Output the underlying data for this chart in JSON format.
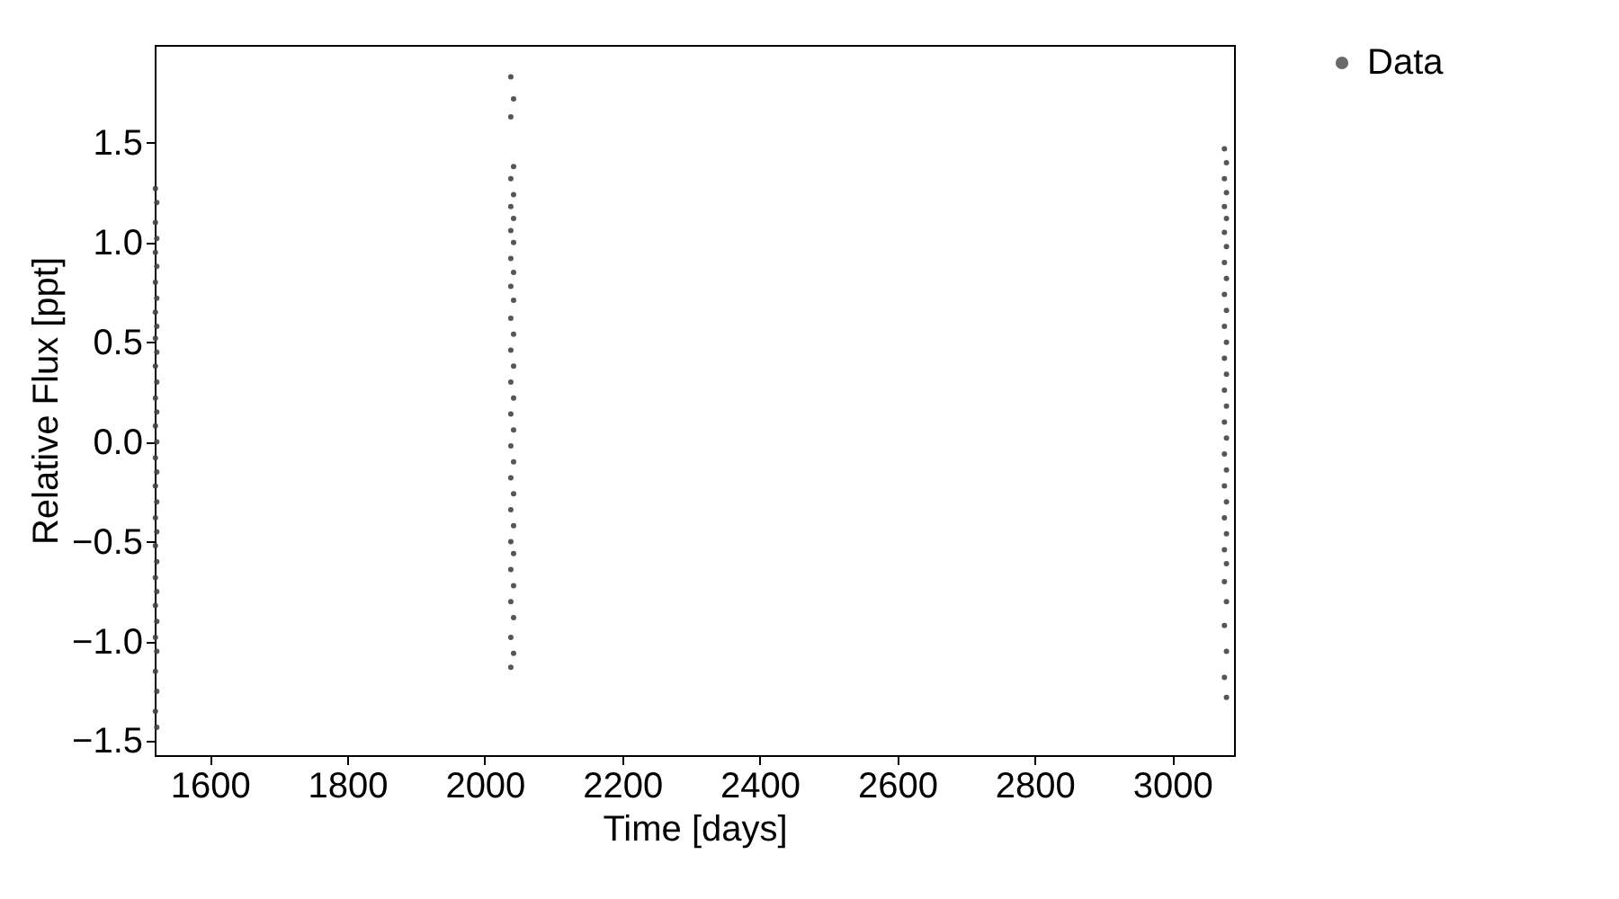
{
  "chart_data": {
    "type": "scatter",
    "xlabel": "Time [days]",
    "ylabel": "Relative Flux [ppt]",
    "xlim": [
      1520,
      3090
    ],
    "xticks": [
      1600,
      1800,
      2000,
      2200,
      2400,
      2600,
      2800,
      3000
    ],
    "ylim": [
      -1.57,
      1.99
    ],
    "yticks": [
      {
        "value": -1.5,
        "label": "−1.5"
      },
      {
        "value": -1.0,
        "label": "−1.0"
      },
      {
        "value": -0.5,
        "label": "−0.5"
      },
      {
        "value": 0.0,
        "label": "0.0"
      },
      {
        "value": 0.5,
        "label": "0.5"
      },
      {
        "value": 1.0,
        "label": "1.0"
      },
      {
        "value": 1.5,
        "label": "1.5"
      }
    ],
    "grid": false,
    "legend": "top right",
    "marker": "circle",
    "series": [
      {
        "name": "Data",
        "color": "#444444",
        "x": [
          1521,
          1523,
          1521,
          1523,
          1521,
          1523,
          1521,
          1523,
          1521,
          1523,
          1521,
          1523,
          1521,
          1523,
          1521,
          1523,
          1521,
          1523,
          1521,
          1523,
          1521,
          1523,
          1521,
          1523,
          1521,
          1523,
          1521,
          1523,
          1521,
          1523,
          1521,
          1523,
          1521,
          1523,
          1521,
          1523,
          2038,
          2042,
          2038,
          2042,
          2038,
          2042,
          2038,
          2042,
          2038,
          2042,
          2038,
          2042,
          2038,
          2042,
          2038,
          2042,
          2038,
          2042,
          2038,
          2042,
          2038,
          2042,
          2038,
          2042,
          2038,
          2042,
          2038,
          2042,
          2038,
          2042,
          2038,
          2042,
          2038,
          2042,
          2038,
          2042,
          2038,
          3076,
          3079,
          3076,
          3079,
          3076,
          3079,
          3076,
          3079,
          3076,
          3079,
          3076,
          3079,
          3076,
          3079,
          3076,
          3079,
          3076,
          3079,
          3076,
          3079,
          3076,
          3079,
          3076,
          3079,
          3076,
          3079,
          3076,
          3079,
          3076,
          3079,
          3076,
          3079,
          3076,
          3079
        ],
        "values": [
          1.27,
          1.2,
          1.1,
          1.02,
          0.95,
          0.88,
          0.8,
          0.72,
          0.65,
          0.58,
          0.52,
          0.45,
          0.38,
          0.3,
          0.22,
          0.15,
          0.08,
          0.0,
          -0.08,
          -0.15,
          -0.22,
          -0.3,
          -0.38,
          -0.45,
          -0.52,
          -0.6,
          -0.68,
          -0.75,
          -0.82,
          -0.9,
          -0.98,
          -1.05,
          -1.15,
          -1.25,
          -1.35,
          -1.43,
          1.83,
          1.72,
          1.63,
          1.38,
          1.32,
          1.24,
          1.18,
          1.12,
          1.06,
          1.0,
          0.92,
          0.85,
          0.78,
          0.71,
          0.62,
          0.54,
          0.46,
          0.38,
          0.3,
          0.22,
          0.14,
          0.06,
          -0.02,
          -0.1,
          -0.18,
          -0.26,
          -0.34,
          -0.42,
          -0.5,
          -0.56,
          -0.64,
          -0.72,
          -0.8,
          -0.88,
          -0.98,
          -1.06,
          -1.13,
          1.47,
          1.4,
          1.32,
          1.25,
          1.18,
          1.12,
          1.05,
          0.98,
          0.9,
          0.82,
          0.74,
          0.66,
          0.58,
          0.5,
          0.42,
          0.34,
          0.26,
          0.18,
          0.1,
          0.02,
          -0.06,
          -0.14,
          -0.22,
          -0.3,
          -0.38,
          -0.46,
          -0.54,
          -0.61,
          -0.7,
          -0.8,
          -0.92,
          -1.05,
          -1.18,
          -1.28
        ]
      }
    ]
  }
}
